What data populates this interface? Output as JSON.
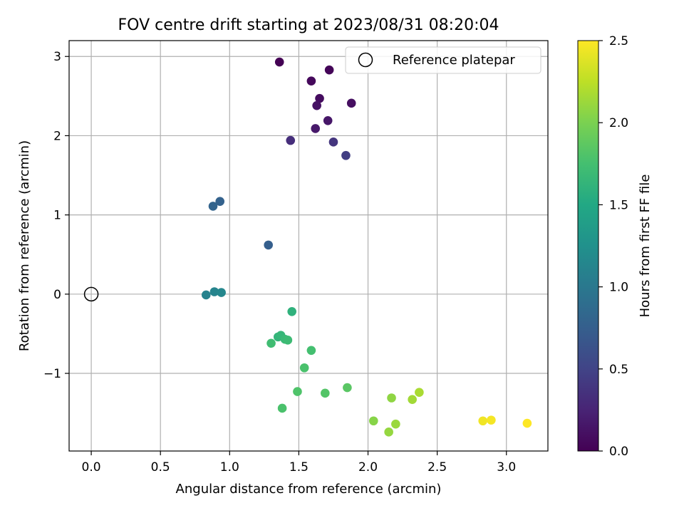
{
  "chart_data": {
    "type": "scatter",
    "title": "FOV centre drift starting at 2023/08/31 08:20:04",
    "xlabel": "Angular distance from reference (arcmin)",
    "ylabel": "Rotation from reference (arcmin)",
    "xlim": [
      -0.16,
      3.3
    ],
    "ylim": [
      -1.98,
      3.2
    ],
    "xticks": [
      0.0,
      0.5,
      1.0,
      1.5,
      2.0,
      2.5,
      3.0
    ],
    "xtick_labels": [
      "0.0",
      "0.5",
      "1.0",
      "1.5",
      "2.0",
      "2.5",
      "3.0"
    ],
    "yticks": [
      -1,
      0,
      1,
      2,
      3
    ],
    "ytick_labels": [
      "−1",
      "0",
      "1",
      "2",
      "3"
    ],
    "grid": true,
    "legend": {
      "placement": "upper right",
      "entries": [
        "Reference platepar"
      ]
    },
    "reference": {
      "label": "Reference platepar",
      "x": 0.0,
      "y": 0.0
    },
    "colorbar": {
      "label": "Hours from first FF file",
      "colormap": "viridis",
      "range": [
        0.0,
        2.5
      ],
      "ticks": [
        0.0,
        0.5,
        1.0,
        1.5,
        2.0,
        2.5
      ],
      "tick_labels": [
        "0.0",
        "0.5",
        "1.0",
        "1.5",
        "2.0",
        "2.5"
      ]
    },
    "points": [
      {
        "x": 1.36,
        "y": 2.93,
        "hours": 0.0
      },
      {
        "x": 1.72,
        "y": 2.83,
        "hours": 0.03
      },
      {
        "x": 1.59,
        "y": 2.69,
        "hours": 0.05
      },
      {
        "x": 1.65,
        "y": 2.47,
        "hours": 0.08
      },
      {
        "x": 1.88,
        "y": 2.41,
        "hours": 0.1
      },
      {
        "x": 1.63,
        "y": 2.38,
        "hours": 0.12
      },
      {
        "x": 1.71,
        "y": 2.19,
        "hours": 0.15
      },
      {
        "x": 1.62,
        "y": 2.09,
        "hours": 0.17
      },
      {
        "x": 1.44,
        "y": 1.94,
        "hours": 0.33
      },
      {
        "x": 1.75,
        "y": 1.92,
        "hours": 0.38
      },
      {
        "x": 1.84,
        "y": 1.75,
        "hours": 0.45
      },
      {
        "x": 0.93,
        "y": 1.17,
        "hours": 0.78
      },
      {
        "x": 0.88,
        "y": 1.11,
        "hours": 0.8
      },
      {
        "x": 1.28,
        "y": 0.62,
        "hours": 0.75
      },
      {
        "x": 0.83,
        "y": -0.01,
        "hours": 1.1
      },
      {
        "x": 0.89,
        "y": 0.03,
        "hours": 1.12
      },
      {
        "x": 0.94,
        "y": 0.02,
        "hours": 1.15
      },
      {
        "x": 1.45,
        "y": -0.22,
        "hours": 1.6
      },
      {
        "x": 1.35,
        "y": -0.54,
        "hours": 1.63
      },
      {
        "x": 1.37,
        "y": -0.52,
        "hours": 1.65
      },
      {
        "x": 1.4,
        "y": -0.57,
        "hours": 1.68
      },
      {
        "x": 1.42,
        "y": -0.58,
        "hours": 1.7
      },
      {
        "x": 1.3,
        "y": -0.62,
        "hours": 1.72
      },
      {
        "x": 1.59,
        "y": -0.71,
        "hours": 1.75
      },
      {
        "x": 1.54,
        "y": -0.93,
        "hours": 1.78
      },
      {
        "x": 1.49,
        "y": -1.23,
        "hours": 1.8
      },
      {
        "x": 1.69,
        "y": -1.25,
        "hours": 1.82
      },
      {
        "x": 1.85,
        "y": -1.18,
        "hours": 1.85
      },
      {
        "x": 1.38,
        "y": -1.44,
        "hours": 1.78
      },
      {
        "x": 2.04,
        "y": -1.6,
        "hours": 2.05
      },
      {
        "x": 2.17,
        "y": -1.31,
        "hours": 2.08
      },
      {
        "x": 2.15,
        "y": -1.74,
        "hours": 2.1
      },
      {
        "x": 2.2,
        "y": -1.64,
        "hours": 2.12
      },
      {
        "x": 2.32,
        "y": -1.33,
        "hours": 2.15
      },
      {
        "x": 2.37,
        "y": -1.24,
        "hours": 2.18
      },
      {
        "x": 2.83,
        "y": -1.6,
        "hours": 2.45
      },
      {
        "x": 2.89,
        "y": -1.59,
        "hours": 2.47
      },
      {
        "x": 3.15,
        "y": -1.63,
        "hours": 2.5
      }
    ]
  }
}
